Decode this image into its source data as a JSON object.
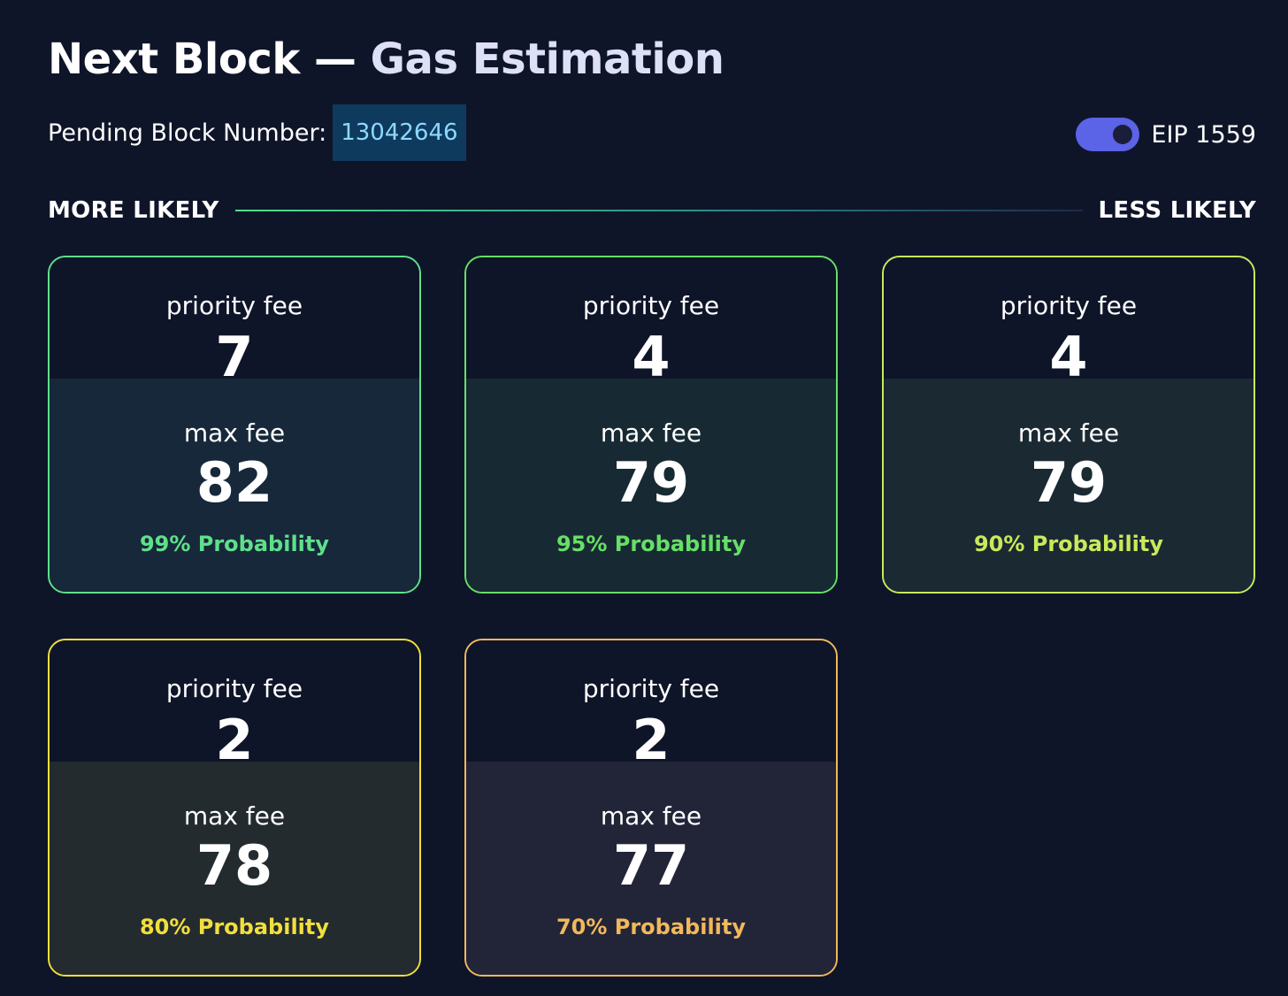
{
  "header": {
    "title_strong": "Next Block",
    "title_sep": " — ",
    "title_accent": "Gas Estimation"
  },
  "pending": {
    "label": "Pending Block Number:",
    "block_number": "13042646"
  },
  "eip_toggle": {
    "label": "EIP 1559",
    "enabled": true
  },
  "likelihood": {
    "left_label": "MORE LIKELY",
    "right_label": "LESS LIKELY"
  },
  "cards": [
    {
      "priority_label": "priority fee",
      "priority_value": "7",
      "max_label": "max fee",
      "max_value": "82",
      "probability": "99% Probability",
      "border_color": "#5ee08a",
      "prob_color": "#5ee08a",
      "bottom_bg": "#16283a"
    },
    {
      "priority_label": "priority fee",
      "priority_value": "4",
      "max_label": "max fee",
      "max_value": "79",
      "probability": "95% Probability",
      "border_color": "#66e066",
      "prob_color": "#66e066",
      "bottom_bg": "#172a33"
    },
    {
      "priority_label": "priority fee",
      "priority_value": "4",
      "max_label": "max fee",
      "max_value": "79",
      "probability": "90% Probability",
      "border_color": "#c8ea5a",
      "prob_color": "#c8ea5a",
      "bottom_bg": "#1b2933"
    },
    {
      "priority_label": "priority fee",
      "priority_value": "2",
      "max_label": "max fee",
      "max_value": "78",
      "probability": "80% Probability",
      "border_color": "#f2df3c",
      "prob_color": "#f2df3c",
      "bottom_bg": "#232b2f"
    },
    {
      "priority_label": "priority fee",
      "priority_value": "2",
      "max_label": "max fee",
      "max_value": "77",
      "probability": "70% Probability",
      "border_color": "#f2b85a",
      "prob_color": "#f2b85a",
      "bottom_bg": "#222538"
    }
  ]
}
